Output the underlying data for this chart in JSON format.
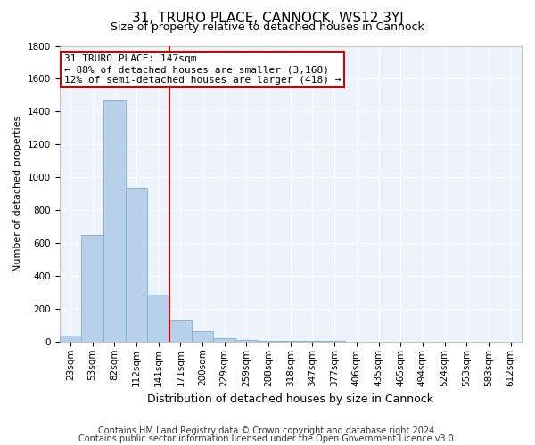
{
  "title": "31, TRURO PLACE, CANNOCK, WS12 3YJ",
  "subtitle": "Size of property relative to detached houses in Cannock",
  "xlabel": "Distribution of detached houses by size in Cannock",
  "ylabel": "Number of detached properties",
  "categories": [
    "23sqm",
    "53sqm",
    "82sqm",
    "112sqm",
    "141sqm",
    "171sqm",
    "200sqm",
    "229sqm",
    "259sqm",
    "288sqm",
    "318sqm",
    "347sqm",
    "377sqm",
    "406sqm",
    "435sqm",
    "465sqm",
    "494sqm",
    "524sqm",
    "553sqm",
    "583sqm",
    "612sqm"
  ],
  "values": [
    40,
    648,
    1473,
    938,
    285,
    128,
    63,
    22,
    10,
    5,
    5,
    5,
    5,
    0,
    0,
    0,
    0,
    0,
    0,
    0,
    0
  ],
  "bar_color": "#b8d0ea",
  "bar_edge_color": "#7aafd4",
  "background_color": "#edf2fb",
  "grid_color": "#ffffff",
  "ylim": [
    0,
    1800
  ],
  "yticks": [
    0,
    200,
    400,
    600,
    800,
    1000,
    1200,
    1400,
    1600,
    1800
  ],
  "annotation_line1": "31 TRURO PLACE: 147sqm",
  "annotation_line2": "← 88% of detached houses are smaller (3,168)",
  "annotation_line3": "12% of semi-detached houses are larger (418) →",
  "vline_x": 4.5,
  "vline_color": "#cc0000",
  "box_color": "#cc0000",
  "footnote_line1": "Contains HM Land Registry data © Crown copyright and database right 2024.",
  "footnote_line2": "Contains public sector information licensed under the Open Government Licence v3.0.",
  "title_fontsize": 11,
  "subtitle_fontsize": 9,
  "annotation_fontsize": 8,
  "ylabel_fontsize": 8,
  "xlabel_fontsize": 9,
  "footnote_fontsize": 7,
  "tick_fontsize": 7.5
}
